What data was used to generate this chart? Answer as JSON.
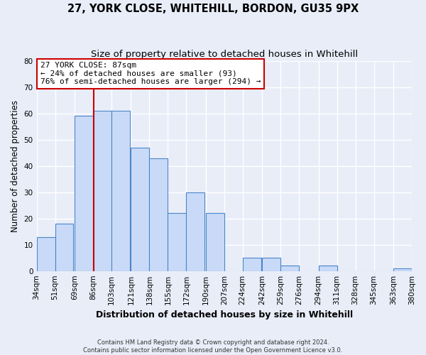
{
  "title1": "27, YORK CLOSE, WHITEHILL, BORDON, GU35 9PX",
  "title2": "Size of property relative to detached houses in Whitehill",
  "xlabel": "Distribution of detached houses by size in Whitehill",
  "ylabel": "Number of detached properties",
  "bar_left_edges": [
    34,
    51,
    69,
    86,
    103,
    121,
    138,
    155,
    172,
    190,
    207,
    224,
    242,
    259,
    276,
    294,
    311,
    328,
    345,
    363
  ],
  "bar_heights": [
    13,
    18,
    59,
    61,
    61,
    47,
    43,
    22,
    30,
    22,
    0,
    5,
    5,
    2,
    0,
    2,
    0,
    0,
    0,
    1
  ],
  "bin_width": 17,
  "bar_color": "#c9daf8",
  "bar_edge_color": "#4a86c8",
  "vline_x": 87,
  "vline_color": "#cc0000",
  "ylim": [
    0,
    80
  ],
  "yticks": [
    0,
    10,
    20,
    30,
    40,
    50,
    60,
    70,
    80
  ],
  "xtick_labels": [
    "34sqm",
    "51sqm",
    "69sqm",
    "86sqm",
    "103sqm",
    "121sqm",
    "138sqm",
    "155sqm",
    "172sqm",
    "190sqm",
    "207sqm",
    "224sqm",
    "242sqm",
    "259sqm",
    "276sqm",
    "294sqm",
    "311sqm",
    "328sqm",
    "345sqm",
    "363sqm",
    "380sqm"
  ],
  "annotation_title": "27 YORK CLOSE: 87sqm",
  "annotation_line1": "← 24% of detached houses are smaller (93)",
  "annotation_line2": "76% of semi-detached houses are larger (294) →",
  "footer1": "Contains HM Land Registry data © Crown copyright and database right 2024.",
  "footer2": "Contains public sector information licensed under the Open Government Licence v3.0.",
  "background_color": "#e8edf8",
  "grid_color": "#ffffff",
  "title1_fontsize": 10.5,
  "title2_fontsize": 9.5,
  "tick_fontsize": 7.5,
  "ylabel_fontsize": 8.5,
  "xlabel_fontsize": 9,
  "footer_fontsize": 6,
  "annotation_fontsize": 8
}
